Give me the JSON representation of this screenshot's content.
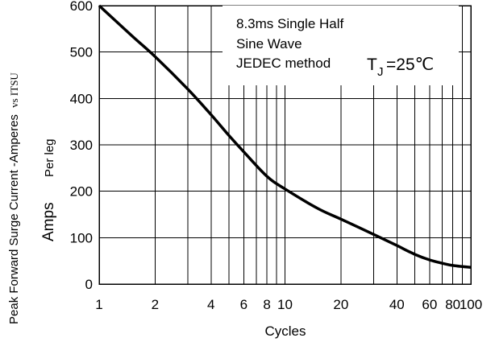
{
  "chart_data": {
    "type": "line",
    "title": "",
    "xlabel": "Cycles",
    "ylabel_large": "Peak Forward Surge Current -Amperes",
    "ylabel_small": "vs ITSU",
    "ylabel_perleg": "Per leg",
    "ylabel_units": "Amps",
    "x_scale": "log",
    "xlim": [
      1,
      100
    ],
    "ylim": [
      0,
      600
    ],
    "x_ticks": [
      1,
      2,
      4,
      6,
      8,
      10,
      20,
      40,
      60,
      80,
      100
    ],
    "x_tick_labels": [
      "1",
      "2",
      "4",
      "6",
      "8",
      "10",
      "20",
      "40",
      "60",
      "80",
      "100"
    ],
    "y_ticks": [
      0,
      100,
      200,
      300,
      400,
      500,
      600
    ],
    "y_tick_labels": [
      "0",
      "100",
      "200",
      "300",
      "400",
      "500",
      "600"
    ],
    "grid": true,
    "series": [
      {
        "x": [
          1,
          1.5,
          2,
          3,
          4,
          5,
          6,
          8,
          10,
          15,
          20,
          30,
          40,
          50,
          60,
          70,
          80,
          100
        ],
        "y": [
          600,
          535,
          490,
          420,
          365,
          320,
          285,
          232,
          205,
          163,
          140,
          107,
          83,
          64,
          52,
          45,
          40,
          36
        ]
      }
    ],
    "annotation": {
      "line1": "8.3ms Single Half",
      "line2": "Sine Wave",
      "line3": "JEDEC method",
      "tj_symbol": "T",
      "tj_sub": "J",
      "tj_value": "=25℃"
    }
  }
}
